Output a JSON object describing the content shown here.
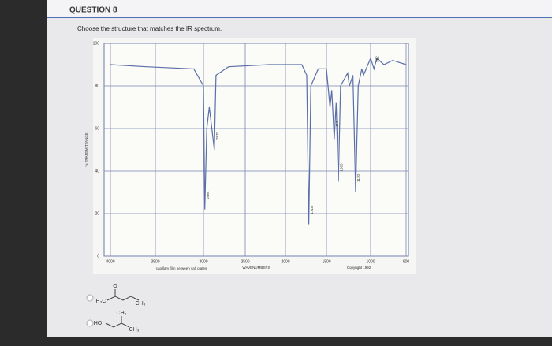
{
  "question": {
    "title": "QUESTION 8",
    "prompt": "Choose the structure that matches the IR spectrum."
  },
  "spectrum": {
    "type": "line",
    "ylabel": "% TRANSMITTANCE",
    "xlabel": "WAVENUMBERS",
    "note": "capillary film between salt plates",
    "copyright": "Copyright 1992",
    "xlim": [
      4000,
      600
    ],
    "xticks": [
      4000,
      3500,
      3000,
      2500,
      2000,
      1500,
      1000,
      600
    ],
    "ylim": [
      0,
      100
    ],
    "yticks": [
      0,
      20,
      40,
      60,
      80,
      100
    ],
    "grid": true,
    "color": "#5b6fa8",
    "x": [
      4000,
      3600,
      3100,
      3000,
      2984,
      2960,
      2930,
      2870,
      2850,
      2700,
      2200,
      2000,
      1800,
      1740,
      1715,
      1690,
      1600,
      1500,
      1460,
      1440,
      1412,
      1390,
      1365,
      1340,
      1260,
      1240,
      1200,
      1170,
      1140,
      1100,
      1080,
      1000,
      962,
      930,
      850,
      750,
      600
    ],
    "values": [
      90,
      89,
      88,
      80,
      22,
      60,
      70,
      50,
      85,
      89,
      90,
      90,
      90,
      85,
      15,
      80,
      88,
      88,
      70,
      78,
      55,
      72,
      35,
      80,
      86,
      80,
      85,
      30,
      80,
      88,
      85,
      93,
      88,
      93,
      90,
      92,
      90
    ],
    "peaks": [
      2984,
      2870,
      1715,
      1412,
      1365,
      1170,
      962
    ],
    "peak_levels": [
      22,
      50,
      15,
      55,
      35,
      30,
      88
    ]
  },
  "options": [
    {
      "labels": [
        "O",
        "H₃C",
        "CH₃"
      ]
    },
    {
      "labels": [
        "CH₃",
        "HO",
        "CH₃"
      ]
    }
  ]
}
